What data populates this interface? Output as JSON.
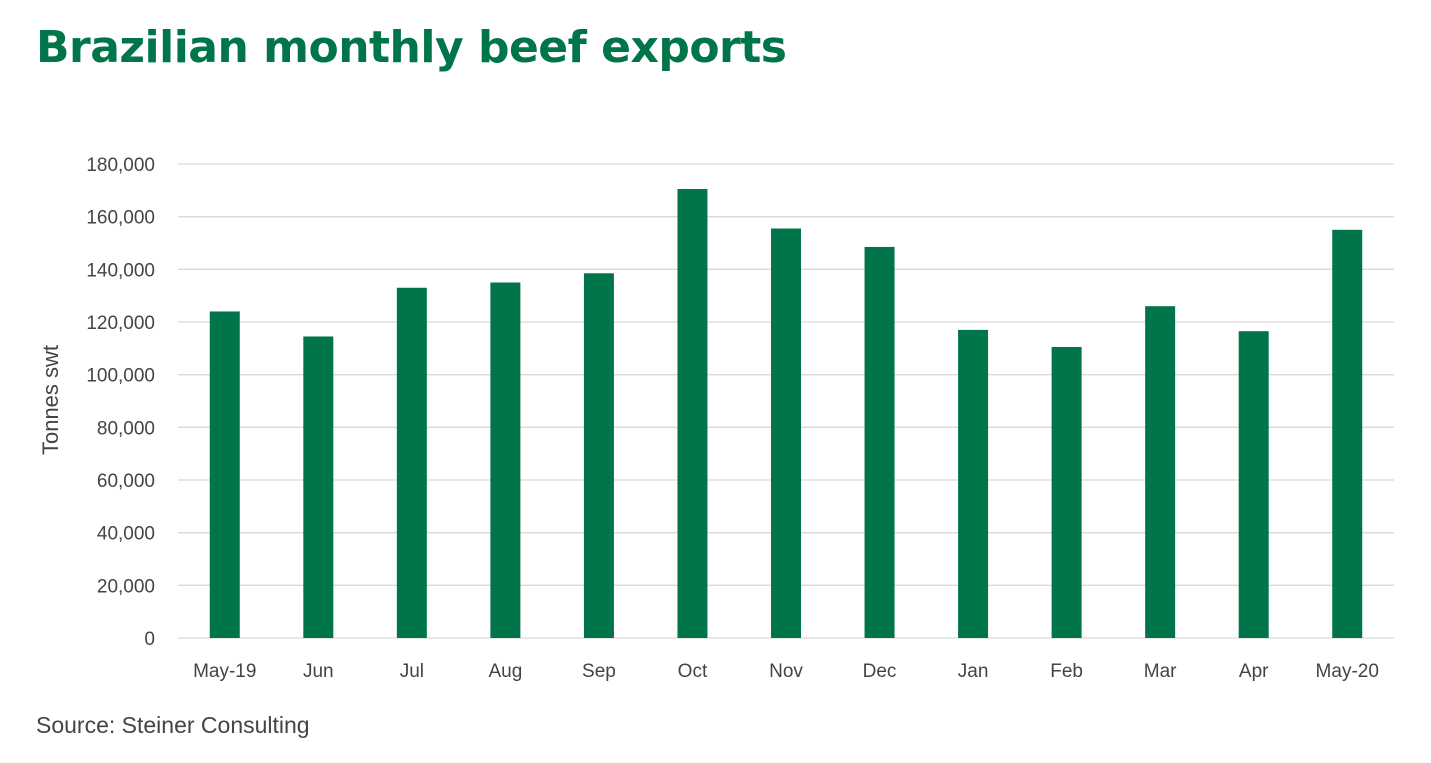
{
  "chart_data": {
    "type": "bar",
    "title": "Brazilian monthly beef exports",
    "ylabel": "Tonnes swt",
    "xlabel": "",
    "source": "Source: Steiner Consulting",
    "ylim": [
      0,
      180000
    ],
    "yticks": [
      "0",
      "20,000",
      "40,000",
      "60,000",
      "80,000",
      "100,000",
      "120,000",
      "140,000",
      "160,000",
      "180,000"
    ],
    "categories": [
      "May-19",
      "Jun",
      "Jul",
      "Aug",
      "Sep",
      "Oct",
      "Nov",
      "Dec",
      "Jan",
      "Feb",
      "Mar",
      "Apr",
      "May-20"
    ],
    "values": [
      124000,
      114500,
      133000,
      135000,
      138500,
      170500,
      155500,
      148500,
      117000,
      110500,
      126000,
      116500,
      155000
    ],
    "grid": true,
    "legend": "none",
    "colors": {
      "bar": "#00754A",
      "title": "#00754A",
      "grid": "#D9D9D9",
      "text": "#444444"
    }
  }
}
